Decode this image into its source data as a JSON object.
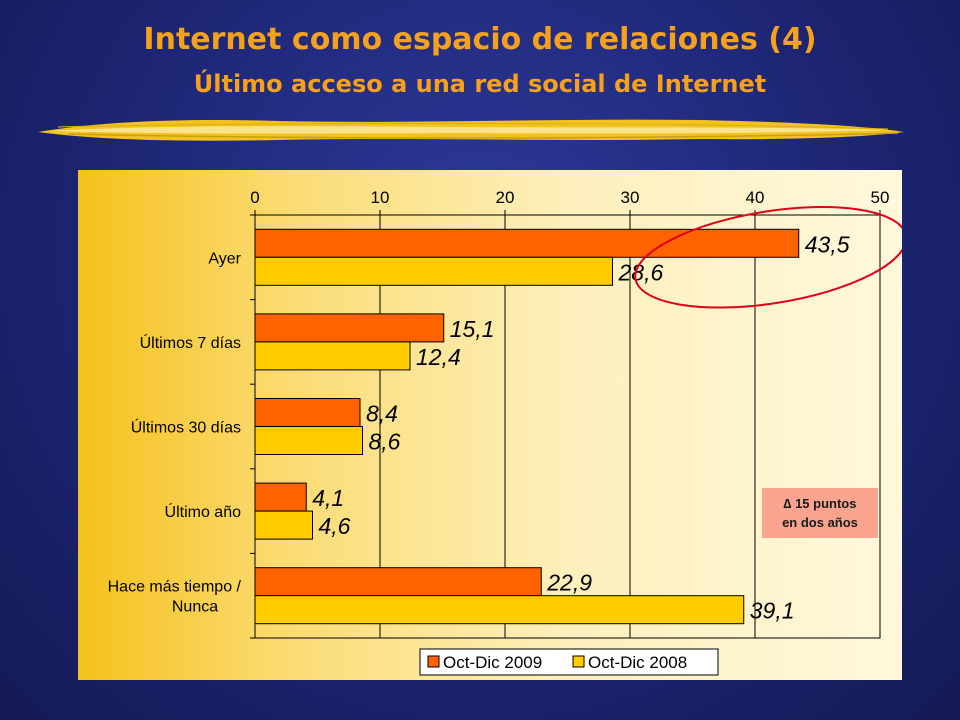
{
  "slide": {
    "title": "Internet como espacio de relaciones (4)",
    "subtitle": "Último acceso a una red social de Internet"
  },
  "note": {
    "line1": "∆ 15 puntos",
    "line2": "en dos años"
  },
  "colors": {
    "series_2009": "#fe6300",
    "series_2008": "#ffcc00",
    "title": "#f5a11c",
    "highlight_ring": "#e0001b",
    "note_bg": "#f8a48e"
  },
  "chart_data": {
    "type": "bar",
    "orientation": "horizontal",
    "title": "",
    "xlabel": "",
    "ylabel": "",
    "xlim": [
      0,
      50
    ],
    "xticks": [
      0,
      10,
      20,
      30,
      40,
      50
    ],
    "grid": true,
    "axis_position": "top",
    "legend_position": "bottom-right",
    "categories": [
      "Ayer",
      "Últimos 7 días",
      "Últimos 30 días",
      "Último año",
      "Hace más tiempo / Nunca"
    ],
    "series": [
      {
        "name": "Oct-Dic 2009",
        "color": "#fe6300",
        "values": [
          43.5,
          15.1,
          8.4,
          4.1,
          22.9
        ],
        "labels": [
          "43,5",
          "15,1",
          "8,4",
          "4,1",
          "22,9"
        ]
      },
      {
        "name": "Oct-Dic 2008",
        "color": "#ffcc00",
        "values": [
          28.6,
          12.4,
          8.6,
          4.6,
          39.1
        ],
        "labels": [
          "28,6",
          "12,4",
          "8,6",
          "4,6",
          "39,1"
        ]
      }
    ]
  }
}
